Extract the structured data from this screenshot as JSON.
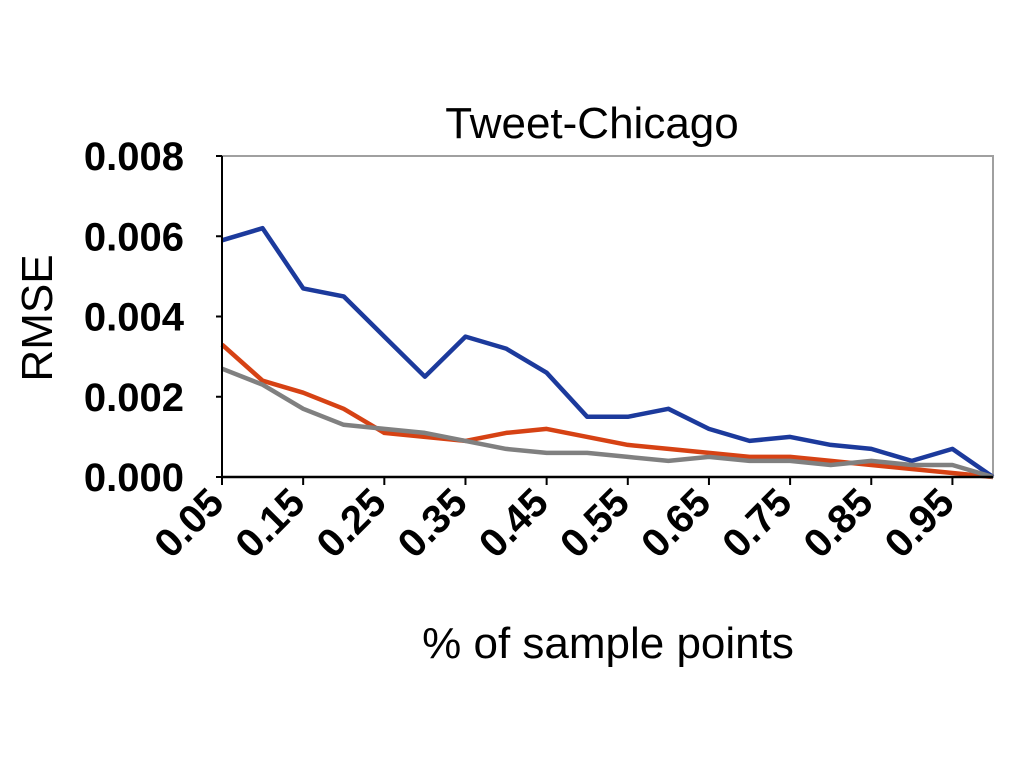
{
  "chart_data": {
    "type": "line",
    "title": "Tweet-Chicago",
    "xlabel": "% of sample points",
    "ylabel": "RMSE",
    "x": [
      0.05,
      0.1,
      0.15,
      0.2,
      0.25,
      0.3,
      0.35,
      0.4,
      0.45,
      0.5,
      0.55,
      0.6,
      0.65,
      0.7,
      0.75,
      0.8,
      0.85,
      0.9,
      0.95,
      1.0
    ],
    "x_ticks": [
      "0.05",
      "0.15",
      "0.25",
      "0.35",
      "0.45",
      "0.55",
      "0.65",
      "0.75",
      "0.85",
      "0.95"
    ],
    "y_ticks": [
      "0.000",
      "0.002",
      "0.004",
      "0.006",
      "0.008"
    ],
    "xlim": [
      0.05,
      1.0
    ],
    "ylim": [
      0,
      0.008
    ],
    "grid": false,
    "legend": "none",
    "series": [
      {
        "color": "#1c3a9c",
        "values": [
          0.0059,
          0.0062,
          0.0047,
          0.0045,
          0.0035,
          0.0025,
          0.0035,
          0.0032,
          0.0026,
          0.0015,
          0.0015,
          0.0017,
          0.0012,
          0.0009,
          0.001,
          0.0008,
          0.0007,
          0.0004,
          0.0007,
          0.0
        ]
      },
      {
        "color": "#d64214",
        "values": [
          0.0033,
          0.0024,
          0.0021,
          0.0017,
          0.0011,
          0.001,
          0.0009,
          0.0011,
          0.0012,
          0.001,
          0.0008,
          0.0007,
          0.0006,
          0.0005,
          0.0005,
          0.0004,
          0.0003,
          0.0002,
          0.0001,
          0.0
        ]
      },
      {
        "color": "#808080",
        "values": [
          0.0027,
          0.0023,
          0.0017,
          0.0013,
          0.0012,
          0.0011,
          0.0009,
          0.0007,
          0.0006,
          0.0006,
          0.0005,
          0.0004,
          0.0005,
          0.0004,
          0.0004,
          0.0003,
          0.0004,
          0.0003,
          0.0003,
          0.0
        ]
      }
    ]
  }
}
